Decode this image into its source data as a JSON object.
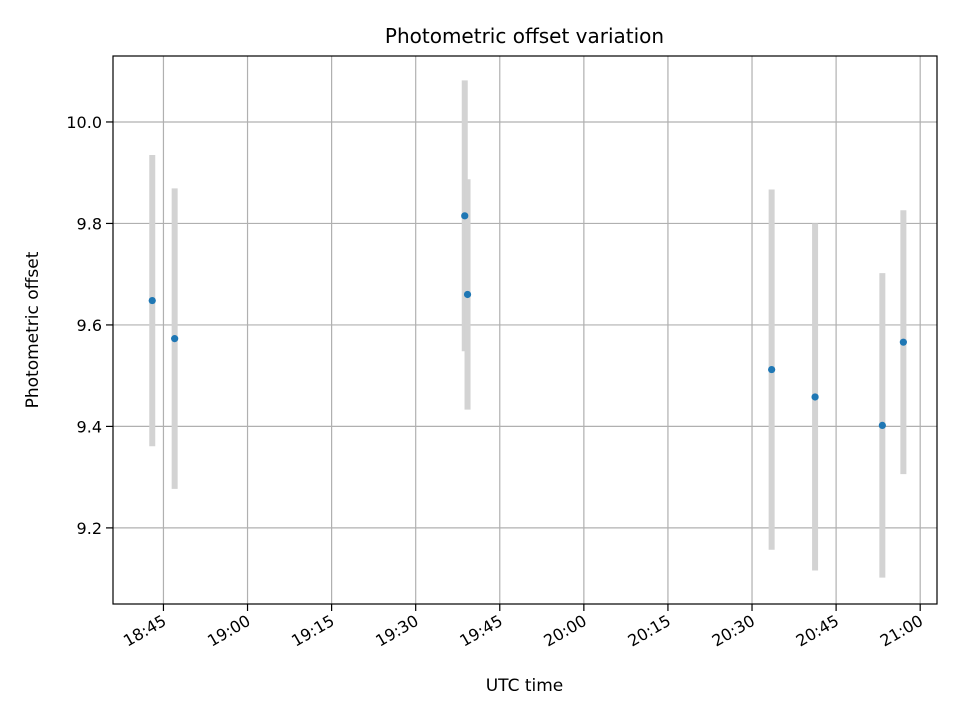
{
  "chart_data": {
    "type": "scatter",
    "title": "Photometric offset variation",
    "xlabel": "UTC time",
    "ylabel": "Photometric offset",
    "xlim": [
      "18:36",
      "21:03"
    ],
    "ylim": [
      9.05,
      10.13
    ],
    "x_ticks": [
      "18:45",
      "19:00",
      "19:15",
      "19:30",
      "19:45",
      "20:00",
      "20:15",
      "20:30",
      "20:45",
      "21:00"
    ],
    "y_ticks": [
      9.2,
      9.4,
      9.6,
      9.8,
      10.0
    ],
    "y_tick_labels": [
      "9.2",
      "9.4",
      "9.6",
      "9.8",
      "10.0"
    ],
    "grid": true,
    "series": [
      {
        "points": [
          {
            "x": "18:43:00",
            "y": 9.648,
            "err": 0.287
          },
          {
            "x": "18:47:00",
            "y": 9.573,
            "err": 0.296
          },
          {
            "x": "19:38:45",
            "y": 9.815,
            "err": 0.267
          },
          {
            "x": "19:39:15",
            "y": 9.66,
            "err": 0.227
          },
          {
            "x": "20:33:30",
            "y": 9.512,
            "err": 0.355
          },
          {
            "x": "20:41:15",
            "y": 9.458,
            "err": 0.342
          },
          {
            "x": "20:53:15",
            "y": 9.402,
            "err": 0.3
          },
          {
            "x": "20:57:00",
            "y": 9.566,
            "err": 0.26
          }
        ]
      }
    ],
    "colors": {
      "marker": "#1f77b4",
      "errorbar": "#d3d3d3",
      "grid": "#b0b0b0",
      "axes": "#000000"
    }
  }
}
